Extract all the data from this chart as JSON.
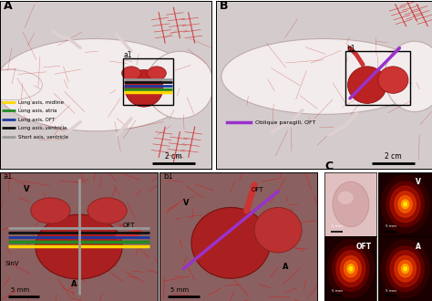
{
  "bg_color": "#FFFFFF",
  "legend_A": [
    {
      "color": "#FFD700",
      "label": "Long axis, midline"
    },
    {
      "color": "#228B22",
      "label": "Long axis, atria"
    },
    {
      "color": "#1E3A9F",
      "label": "Long axis, OFT"
    },
    {
      "color": "#111111",
      "label": "Long axis, ventricle"
    },
    {
      "color": "#999999",
      "label": "Short axis, ventricle"
    }
  ],
  "legend_B_color": "#9932CC",
  "legend_B_label": "Oblique paragill, OFT",
  "panel_A_bg": "#D8D0CC",
  "panel_B_bg": "#D8D0CC",
  "panel_a1_bg": "#B89090",
  "panel_b1_bg": "#C09090",
  "body_color": "#F0EAEA",
  "body_edge": "#B09090",
  "vessel_color": "#CC2222",
  "heart_color": "#AA2222",
  "scale_2cm": "2 cm",
  "scale_5mm": "5 mm",
  "ax_line_gray": "#999999",
  "ax_line_black": "#111111",
  "ax_line_blue": "#1E3A9F",
  "ax_line_green": "#228B22",
  "ax_line_yellow": "#FFD700",
  "purple_line": "#9932CC"
}
